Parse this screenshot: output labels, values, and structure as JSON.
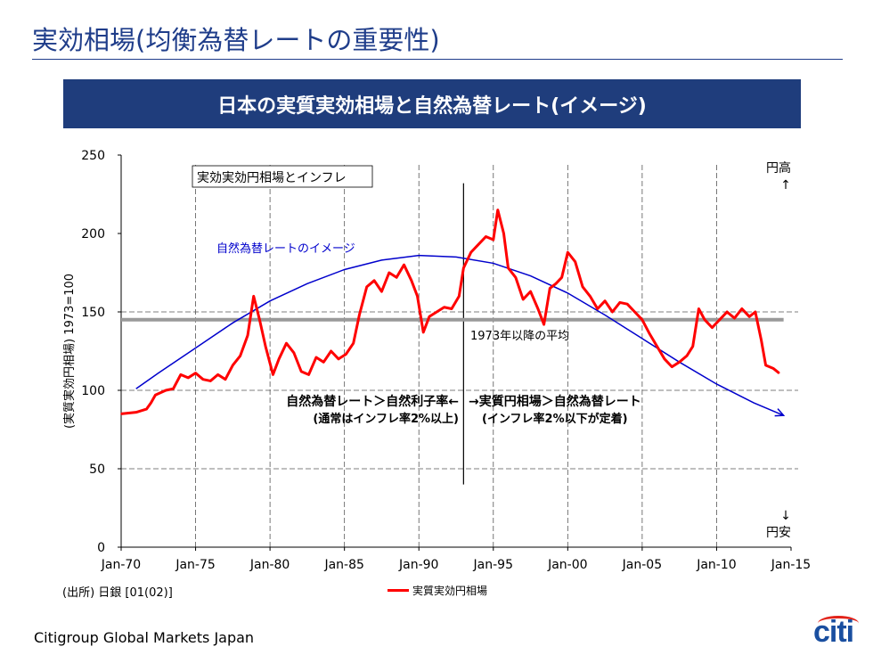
{
  "page": {
    "title": "実効相場(均衡為替レートの重要性)",
    "banner": "日本の実質実効相場と自然為替レート(イメージ)",
    "source": "(出所) 日銀 [01(02)]",
    "footer": "Citigroup Global Markets Japan",
    "logo": "citi",
    "colors": {
      "brand": "#1f3d7c",
      "series": "#ff0000",
      "curve": "#0000cc",
      "average": "#9a9a9a"
    }
  },
  "chart_data": {
    "type": "line",
    "xlabel": "",
    "ylabel": "(実質実効円相場) 1973=100",
    "ylim": [
      0,
      250
    ],
    "yticks": [
      0,
      50,
      100,
      150,
      200,
      250
    ],
    "xticks": [
      "Jan-70",
      "Jan-75",
      "Jan-80",
      "Jan-85",
      "Jan-90",
      "Jan-95",
      "Jan-00",
      "Jan-05",
      "Jan-10",
      "Jan-15"
    ],
    "xlim": [
      1970,
      2015
    ],
    "grid": "horizontal dashed at 50, 100, 150; vertical dashed at 5-year ticks",
    "legend": "bottom",
    "series": [
      {
        "name": "実質実効円相場",
        "color": "#ff0000",
        "points": [
          [
            1970.0,
            85
          ],
          [
            1971.0,
            86
          ],
          [
            1971.7,
            88
          ],
          [
            1972.0,
            92
          ],
          [
            1972.3,
            97
          ],
          [
            1973.0,
            100
          ],
          [
            1973.5,
            101
          ],
          [
            1974.0,
            110
          ],
          [
            1974.5,
            108
          ],
          [
            1975.0,
            111
          ],
          [
            1975.5,
            107
          ],
          [
            1976.0,
            106
          ],
          [
            1976.5,
            110
          ],
          [
            1977.0,
            107
          ],
          [
            1977.5,
            116
          ],
          [
            1978.0,
            122
          ],
          [
            1978.5,
            135
          ],
          [
            1978.9,
            160
          ],
          [
            1979.3,
            145
          ],
          [
            1979.7,
            128
          ],
          [
            1980.2,
            110
          ],
          [
            1980.6,
            120
          ],
          [
            1981.1,
            130
          ],
          [
            1981.6,
            124
          ],
          [
            1982.1,
            112
          ],
          [
            1982.6,
            110
          ],
          [
            1983.1,
            121
          ],
          [
            1983.6,
            118
          ],
          [
            1984.1,
            125
          ],
          [
            1984.6,
            120
          ],
          [
            1985.1,
            123
          ],
          [
            1985.6,
            130
          ],
          [
            1986.0,
            148
          ],
          [
            1986.5,
            166
          ],
          [
            1987.0,
            170
          ],
          [
            1987.5,
            163
          ],
          [
            1988.0,
            175
          ],
          [
            1988.5,
            172
          ],
          [
            1989.0,
            180
          ],
          [
            1989.5,
            170
          ],
          [
            1989.9,
            160
          ],
          [
            1990.3,
            137
          ],
          [
            1990.7,
            147
          ],
          [
            1991.2,
            150
          ],
          [
            1991.7,
            153
          ],
          [
            1992.2,
            152
          ],
          [
            1992.7,
            160
          ],
          [
            1993.0,
            178
          ],
          [
            1993.5,
            188
          ],
          [
            1994.0,
            193
          ],
          [
            1994.5,
            198
          ],
          [
            1995.0,
            196
          ],
          [
            1995.3,
            215
          ],
          [
            1995.7,
            200
          ],
          [
            1996.0,
            178
          ],
          [
            1996.5,
            172
          ],
          [
            1997.0,
            158
          ],
          [
            1997.5,
            163
          ],
          [
            1998.0,
            152
          ],
          [
            1998.4,
            142
          ],
          [
            1998.8,
            165
          ],
          [
            1999.2,
            168
          ],
          [
            1999.6,
            172
          ],
          [
            2000.0,
            188
          ],
          [
            2000.5,
            182
          ],
          [
            2001.0,
            166
          ],
          [
            2001.5,
            160
          ],
          [
            2002.0,
            152
          ],
          [
            2002.5,
            157
          ],
          [
            2003.0,
            150
          ],
          [
            2003.5,
            156
          ],
          [
            2004.0,
            155
          ],
          [
            2004.5,
            150
          ],
          [
            2005.0,
            145
          ],
          [
            2005.5,
            136
          ],
          [
            2006.0,
            128
          ],
          [
            2006.5,
            120
          ],
          [
            2007.0,
            115
          ],
          [
            2007.5,
            118
          ],
          [
            2008.0,
            122
          ],
          [
            2008.4,
            128
          ],
          [
            2008.8,
            152
          ],
          [
            2009.2,
            145
          ],
          [
            2009.7,
            140
          ],
          [
            2010.2,
            145
          ],
          [
            2010.7,
            150
          ],
          [
            2011.2,
            146
          ],
          [
            2011.7,
            152
          ],
          [
            2012.2,
            147
          ],
          [
            2012.6,
            150
          ],
          [
            2013.0,
            132
          ],
          [
            2013.3,
            116
          ],
          [
            2013.8,
            114
          ],
          [
            2014.2,
            111
          ]
        ]
      },
      {
        "name": "自然為替レートのイメージ",
        "color": "#0000cc",
        "points": [
          [
            1971.0,
            101
          ],
          [
            1972.5,
            111
          ],
          [
            1975.0,
            127
          ],
          [
            1977.5,
            143
          ],
          [
            1980.0,
            157
          ],
          [
            1982.5,
            168
          ],
          [
            1985.0,
            177
          ],
          [
            1987.5,
            183
          ],
          [
            1990.0,
            186
          ],
          [
            1992.5,
            185
          ],
          [
            1995.0,
            181
          ],
          [
            1997.5,
            173
          ],
          [
            2000.0,
            162
          ],
          [
            2002.5,
            148
          ],
          [
            2005.0,
            133
          ],
          [
            2007.5,
            118
          ],
          [
            2010.0,
            104
          ],
          [
            2012.5,
            92
          ],
          [
            2014.5,
            84
          ]
        ]
      },
      {
        "name": "1973年以降の平均",
        "color": "#9a9a9a",
        "points": [
          [
            1970.0,
            145
          ],
          [
            2014.5,
            145
          ]
        ]
      }
    ],
    "vline": {
      "x": 1993.0,
      "y0": 40,
      "y1": 232
    },
    "annotations": {
      "box_label": "実効実効円相場とインフレ",
      "curve_label": "自然為替レートのイメージ",
      "average_label": "1973年以降の平均",
      "left_note_1": "自然為替レート＞自然利子率←",
      "left_note_2": "(通常はインフレ率2%以上)",
      "right_note_1": "→実質円相場＞自然為替レート",
      "right_note_2": "(インフレ率2%以下が定着)",
      "up_arrow": "↑",
      "up_label": "円高",
      "down_arrow": "↓",
      "down_label": "円安"
    }
  }
}
